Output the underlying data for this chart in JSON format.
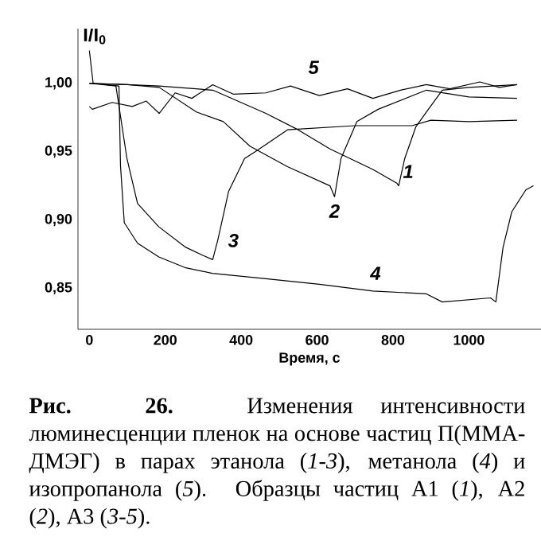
{
  "chart_data": {
    "type": "line",
    "xlabel": "Время, с",
    "ylabel": "I/I$_{0}$",
    "xlim": [
      -30,
      1190
    ],
    "ylim": [
      0.82,
      1.04
    ],
    "xticks": [
      0,
      200,
      400,
      600,
      800,
      1000
    ],
    "yticks": [
      {
        "value": 0.85,
        "label": "0,85"
      },
      {
        "value": 0.9,
        "label": "0,90"
      },
      {
        "value": 0.95,
        "label": "0,95"
      },
      {
        "value": 1.0,
        "label": "1,00"
      }
    ],
    "grid": false,
    "series": [
      {
        "name": "1",
        "color": "#000000",
        "x": [
          0,
          100,
          184,
          325,
          465,
          550,
          634,
          747,
          810,
          815,
          831,
          860,
          888,
          930,
          1000,
          1127
        ],
        "values": [
          1.0,
          0.999,
          0.998,
          0.995,
          0.978,
          0.966,
          0.952,
          0.937,
          0.927,
          0.925,
          0.945,
          0.968,
          0.979,
          0.995,
          0.997,
          0.999
        ]
      },
      {
        "name": "2",
        "color": "#000000",
        "x": [
          0,
          100,
          184,
          282,
          353,
          423,
          522,
          634,
          646,
          663,
          705,
          761,
          888,
          1000,
          1127
        ],
        "values": [
          1.0,
          0.999,
          0.997,
          0.979,
          0.972,
          0.954,
          0.939,
          0.925,
          0.917,
          0.945,
          0.972,
          0.981,
          0.995,
          0.99,
          0.989
        ]
      },
      {
        "name": "3",
        "color": "#000000",
        "x": [
          0,
          70,
          99,
          127,
          183,
          254,
          300,
          325,
          339,
          367,
          409,
          437,
          522,
          700,
          850,
          900,
          1000,
          1127
        ],
        "values": [
          1.0,
          0.998,
          0.945,
          0.912,
          0.895,
          0.88,
          0.874,
          0.871,
          0.886,
          0.921,
          0.945,
          0.95,
          0.966,
          0.969,
          0.969,
          0.973,
          0.972,
          0.973
        ]
      },
      {
        "name": "4",
        "color": "#000000",
        "x": [
          0,
          10,
          78,
          82,
          92,
          127,
          183,
          254,
          324,
          465,
          606,
          747,
          887,
          930,
          1057,
          1071,
          1090,
          1113,
          1150,
          1170
        ],
        "values": [
          1.024,
          1.0,
          0.998,
          0.94,
          0.898,
          0.883,
          0.873,
          0.865,
          0.861,
          0.857,
          0.853,
          0.848,
          0.846,
          0.84,
          0.843,
          0.84,
          0.88,
          0.906,
          0.922,
          0.925
        ]
      },
      {
        "name": "5",
        "color": "#000000",
        "x": [
          0,
          8,
          60,
          113,
          150,
          184,
          226,
          270,
          325,
          380,
          465,
          530,
          606,
          680,
          747,
          820,
          888,
          950,
          1029,
          1080,
          1127
        ],
        "values": [
          0.983,
          0.981,
          0.986,
          0.983,
          0.987,
          0.978,
          0.993,
          0.989,
          0.999,
          0.992,
          0.993,
          0.998,
          0.991,
          0.996,
          0.989,
          0.995,
          0.999,
          0.996,
          1.001,
          0.997,
          0.999
        ]
      }
    ],
    "annotations": [
      "**Рис. 26.** Изменения интенсивности люминесценции пленок на основе частиц П(ММА-ДМЭГ) в парах этанола (*1-3*), метанола (*4*) и изопропанола (*5*). Образцы частиц А1 (*1*), А2 (*2*), А3 (*3-5*)."
    ]
  }
}
